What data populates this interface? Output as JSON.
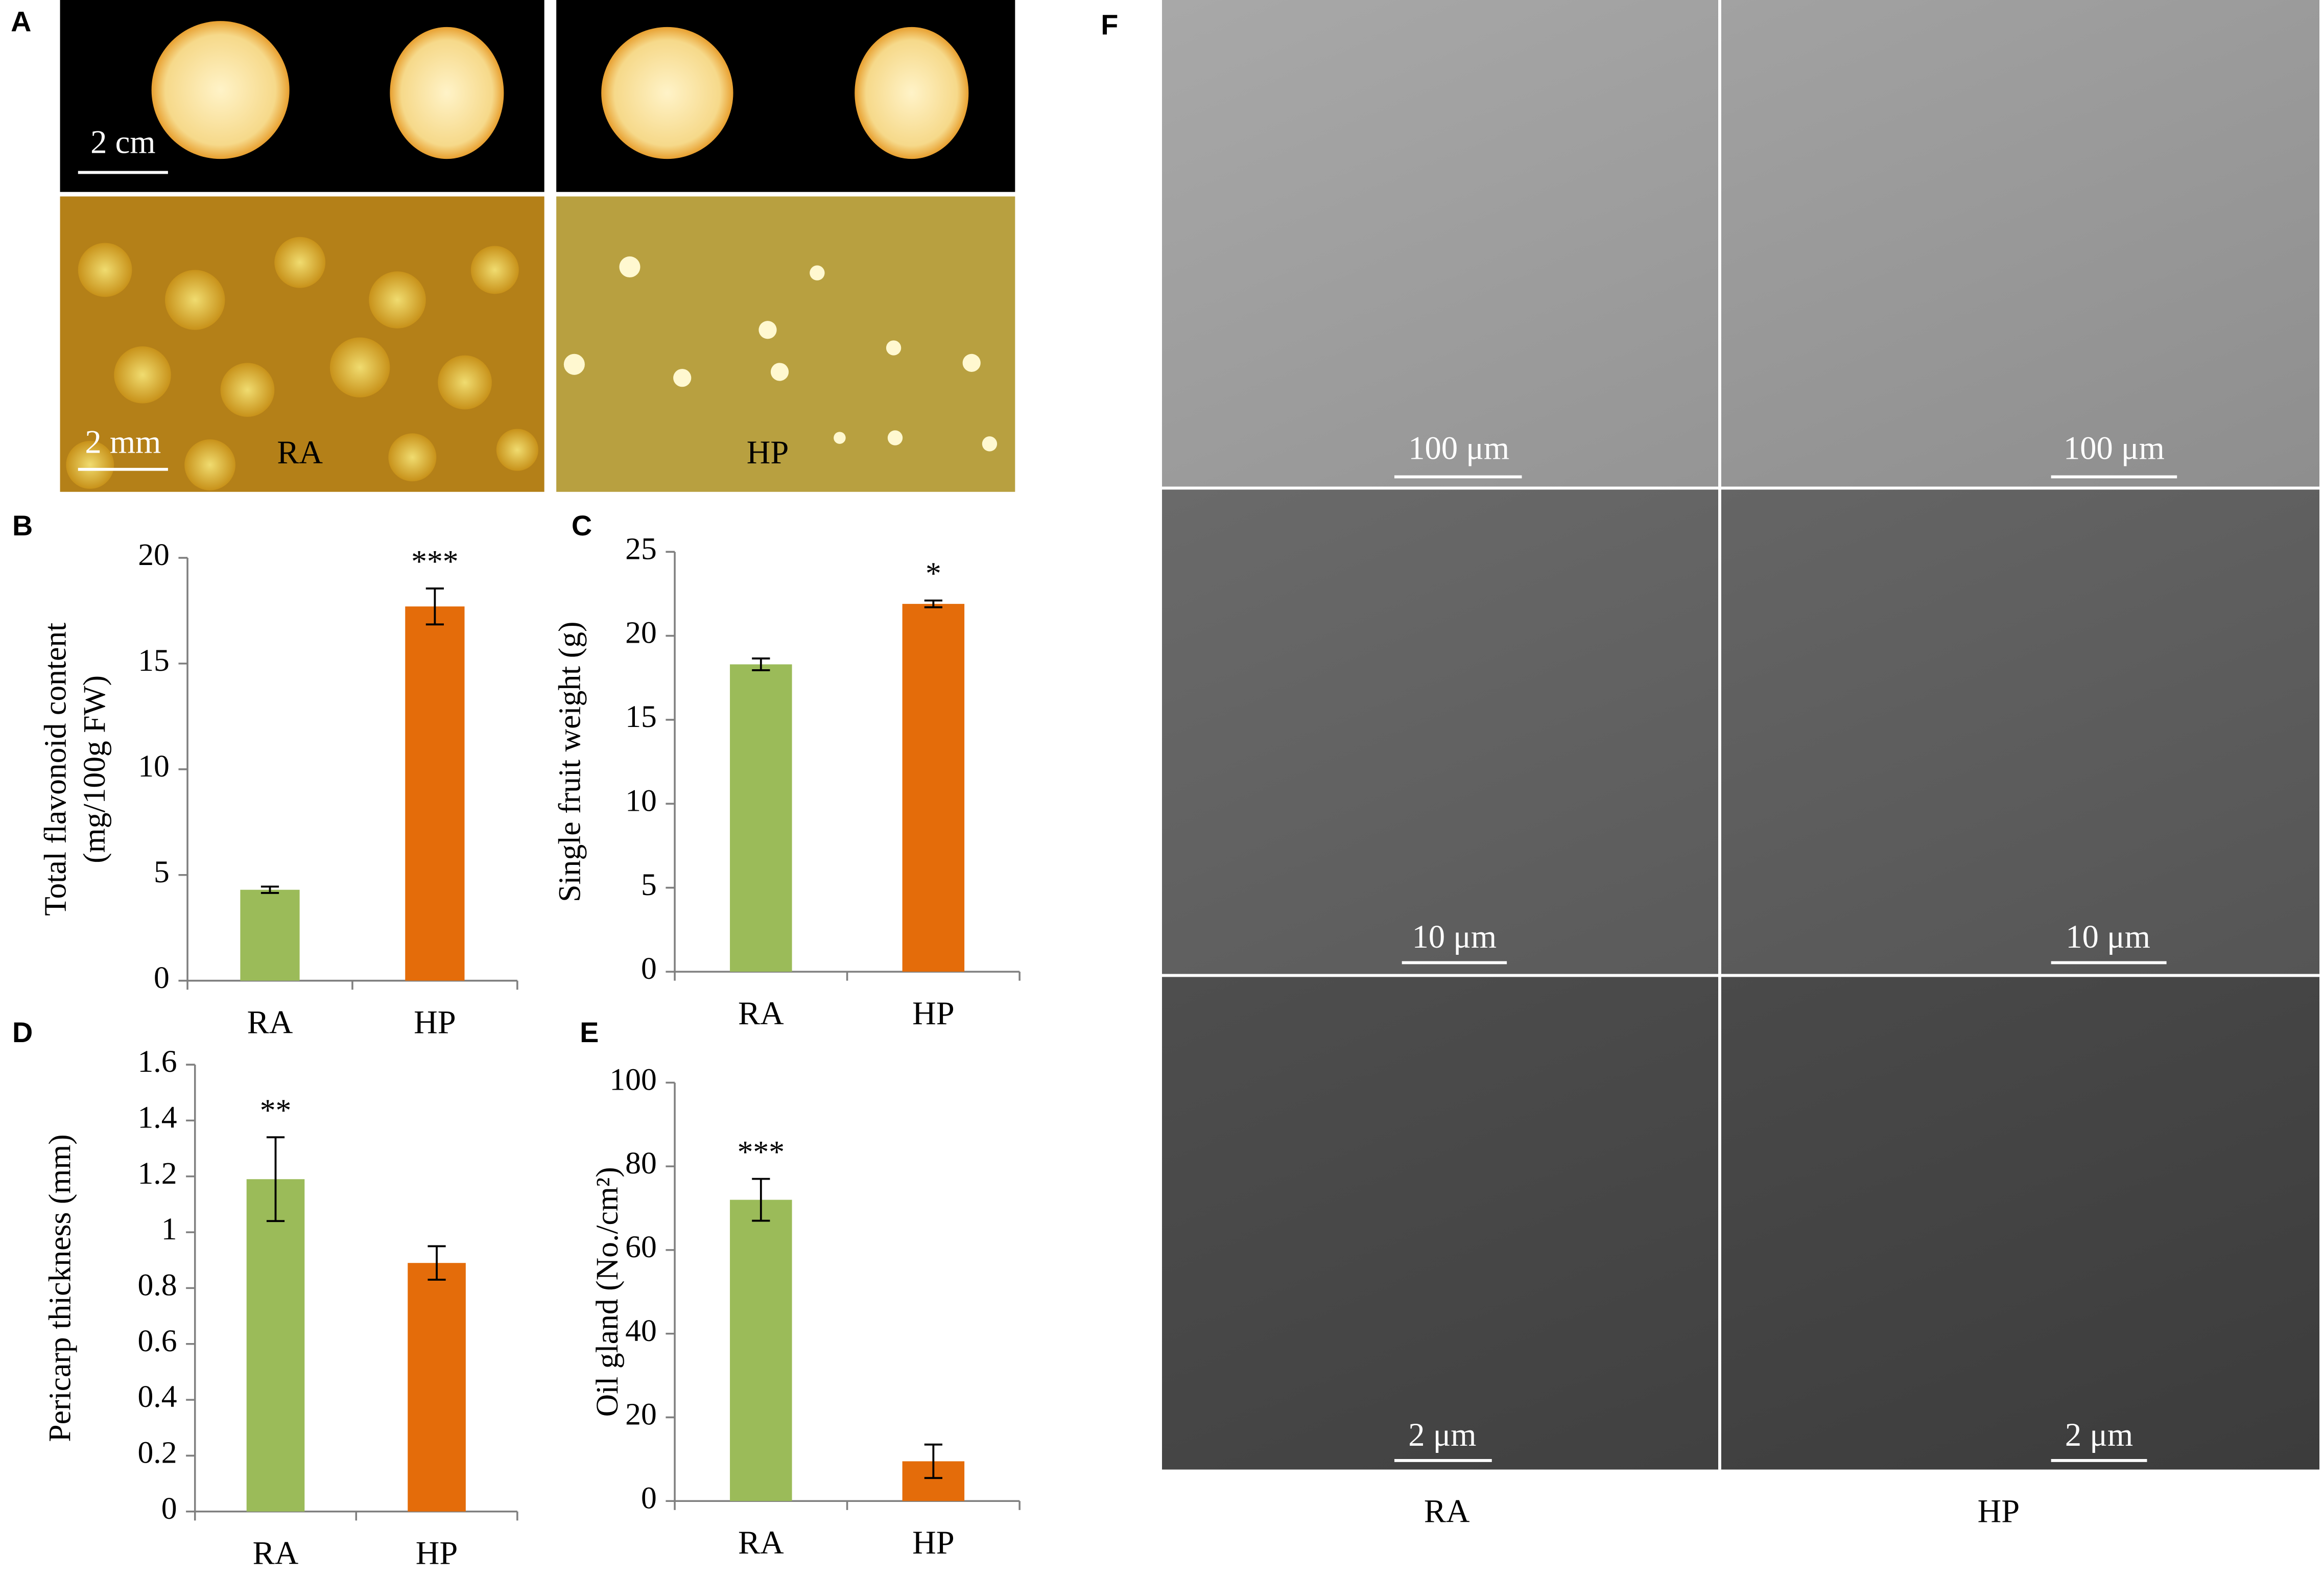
{
  "chart_data": [
    {
      "type": "bar",
      "panel_label": "B",
      "ylabel": [
        "Total flavonoid content",
        "(mg/100g FW)"
      ],
      "categories": [
        "RA",
        "HP"
      ],
      "values": [
        4.3,
        17.7
      ],
      "errors": [
        0.15,
        0.85
      ],
      "significance": [
        null,
        "***"
      ],
      "colors": [
        "#9bbb59",
        "#e46c0a"
      ],
      "ylim": [
        0,
        20
      ],
      "yticks": [
        0,
        5,
        10,
        15,
        20
      ]
    },
    {
      "type": "bar",
      "panel_label": "C",
      "ylabel": [
        "Single fruit weight (g)"
      ],
      "categories": [
        "RA",
        "HP"
      ],
      "values": [
        18.3,
        21.9
      ],
      "errors": [
        0.35,
        0.2
      ],
      "significance": [
        null,
        "*"
      ],
      "colors": [
        "#9bbb59",
        "#e46c0a"
      ],
      "ylim": [
        0,
        25
      ],
      "yticks": [
        0,
        5,
        10,
        15,
        20,
        25
      ]
    },
    {
      "type": "bar",
      "panel_label": "D",
      "ylabel": [
        "Pericarp thickness (mm)"
      ],
      "categories": [
        "RA",
        "HP"
      ],
      "values": [
        1.19,
        0.89
      ],
      "errors": [
        0.15,
        0.06
      ],
      "significance": [
        "**",
        null
      ],
      "colors": [
        "#9bbb59",
        "#e46c0a"
      ],
      "ylim": [
        0,
        1.6
      ],
      "yticks": [
        0,
        0.2,
        0.4,
        0.6,
        0.8,
        1,
        1.2,
        1.4,
        1.6
      ]
    },
    {
      "type": "bar",
      "panel_label": "E",
      "ylabel": [
        "Oil gland (No./cm²)"
      ],
      "categories": [
        "RA",
        "HP"
      ],
      "values": [
        72,
        9.5
      ],
      "errors": [
        5,
        4
      ],
      "significance": [
        "***",
        null
      ],
      "colors": [
        "#9bbb59",
        "#e46c0a"
      ],
      "ylim": [
        0,
        100
      ],
      "yticks": [
        0,
        20,
        40,
        60,
        80,
        100
      ]
    }
  ],
  "figure": {
    "panel_a": {
      "label": "A",
      "scale_bars": [
        "2 cm",
        "2 mm"
      ],
      "samples": [
        "RA",
        "HP"
      ]
    },
    "panel_f": {
      "label": "F",
      "scale_bars": [
        "100 μm",
        "100 μm",
        "10 μm",
        "10 μm",
        "2 μm",
        "2 μm"
      ],
      "samples": [
        "RA",
        "HP"
      ]
    }
  }
}
